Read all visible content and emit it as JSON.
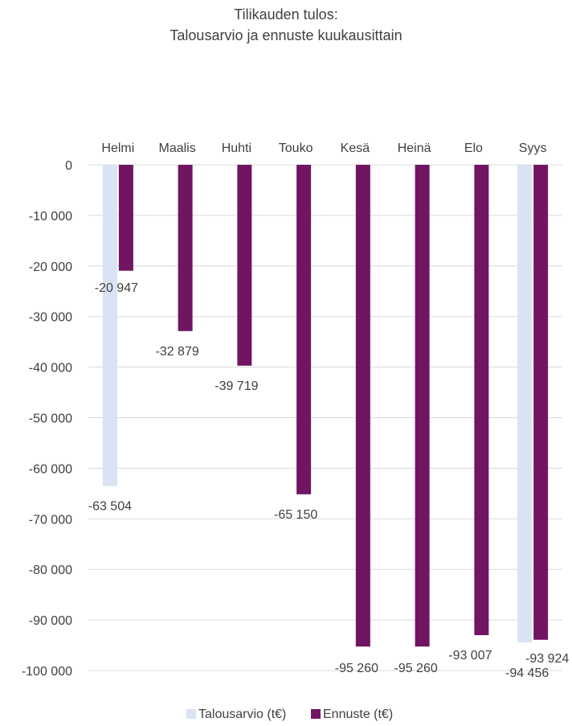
{
  "chart_data": {
    "type": "bar",
    "title": "Tilikauden tulos:",
    "subtitle": "Talousarvio ja ennuste kuukausittain",
    "xlabel": "",
    "ylabel": "",
    "categories": [
      "Helmi",
      "Maalis",
      "Huhti",
      "Touko",
      "Kesä",
      "Heinä",
      "Elo",
      "Syys"
    ],
    "ylim": [
      -100000,
      0
    ],
    "yticks": [
      0,
      -10000,
      -20000,
      -30000,
      -40000,
      -50000,
      -60000,
      -70000,
      -80000,
      -90000,
      -100000
    ],
    "ytick_labels": [
      "0",
      "-10 000",
      "-20 000",
      "-30 000",
      "-40 000",
      "-50 000",
      "-60 000",
      "-70 000",
      "-80 000",
      "-90 000",
      "-100 000"
    ],
    "grid": true,
    "legend_position": "bottom",
    "category_axis_position": "top",
    "series": [
      {
        "name": "Talousarvio (t€)",
        "color": "#dae3f3",
        "values": [
          -63504,
          null,
          null,
          null,
          null,
          null,
          null,
          -94456
        ],
        "data_labels": [
          "-63 504",
          "",
          "",
          "",
          "",
          "",
          "",
          "-94 456"
        ]
      },
      {
        "name": "Ennuste (t€)",
        "color": "#711563",
        "values": [
          -20947,
          -32879,
          -39719,
          -65150,
          -95260,
          -95260,
          -93007,
          -93924
        ],
        "data_labels": [
          "-20 947",
          "-32 879",
          "-39 719",
          "-65 150",
          "-95 260",
          "-95 260",
          "-93 007",
          "-93 924"
        ]
      }
    ]
  }
}
